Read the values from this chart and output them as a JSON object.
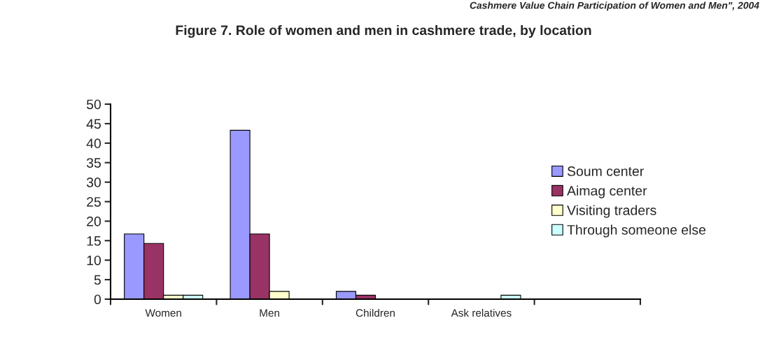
{
  "chart_data": {
    "type": "bar",
    "title": "Figure 7. Role of women and men in cashmere trade, by location",
    "annotations": [
      "Cashmere Value Chain Participation of Women and Men\", 2004"
    ],
    "categories": [
      "Women",
      "Men",
      "Children",
      "Ask relatives",
      null
    ],
    "series": [
      {
        "name": "Soum center",
        "color": "#9999ff",
        "values": [
          16.7,
          43.3,
          2,
          null,
          null
        ]
      },
      {
        "name": "Aimag center",
        "color": "#993366",
        "values": [
          14.3,
          16.7,
          1,
          null,
          null
        ]
      },
      {
        "name": "Visiting traders",
        "color": "#ffffcc",
        "values": [
          1,
          2,
          null,
          null,
          null
        ]
      },
      {
        "name": "Through someone else",
        "color": "#ccffff",
        "values": [
          1,
          null,
          null,
          1,
          null
        ]
      }
    ],
    "ylim": [
      0,
      50
    ],
    "yticks": [
      0,
      5,
      10,
      15,
      20,
      25,
      30,
      35,
      40,
      45,
      50
    ],
    "grid": false,
    "legend": "right"
  }
}
